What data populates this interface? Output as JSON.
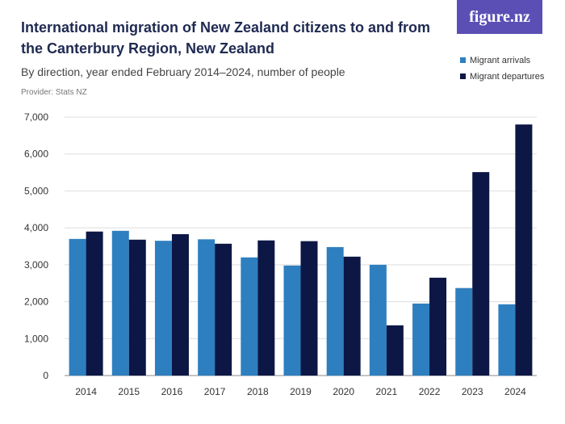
{
  "brand": "figure.nz",
  "chart_data": {
    "type": "bar",
    "title": "International migration of New Zealand citizens to and from the Canterbury Region, New Zealand",
    "subtitle": "By direction, year ended February 2014–2024, number of people",
    "provider": "Provider: Stats NZ",
    "categories": [
      "2014",
      "2015",
      "2016",
      "2017",
      "2018",
      "2019",
      "2020",
      "2021",
      "2022",
      "2023",
      "2024"
    ],
    "series": [
      {
        "name": "Migrant arrivals",
        "color": "#2e7fc0",
        "values": [
          3700,
          3920,
          3650,
          3690,
          3200,
          2980,
          3480,
          3000,
          1950,
          2370,
          1930
        ]
      },
      {
        "name": "Migrant departures",
        "color": "#0c1745",
        "values": [
          3900,
          3680,
          3830,
          3570,
          3660,
          3640,
          3220,
          1360,
          2650,
          5510,
          6800
        ]
      }
    ],
    "ylim": [
      0,
      7000
    ],
    "yticks": [
      0,
      {
        "value": 1000,
        "label": "1,000"
      },
      {
        "value": 2000,
        "label": "2,000"
      },
      {
        "value": 3000,
        "label": "3,000"
      },
      {
        "value": 4000,
        "label": "4,000"
      },
      {
        "value": 5000,
        "label": "5,000"
      },
      {
        "value": 6000,
        "label": "6,000"
      },
      {
        "value": 7000,
        "label": "7,000"
      }
    ],
    "grid": true,
    "legend": "top-right"
  }
}
